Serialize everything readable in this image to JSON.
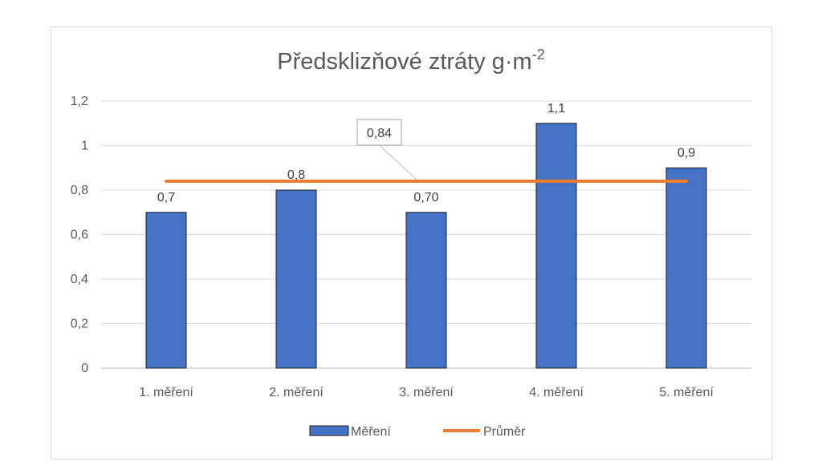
{
  "chart_data": {
    "type": "bar",
    "title": "Předsklizňové ztráty g·m",
    "title_superscript": "-2",
    "categories": [
      "1. měření",
      "2. měření",
      "3. měření",
      "4. měření",
      "5. měření"
    ],
    "series": [
      {
        "name": "Měření",
        "kind": "bar",
        "color": "#4472c4",
        "values": [
          0.7,
          0.8,
          0.7,
          1.1,
          0.9
        ],
        "data_labels": [
          "0,7",
          "0,8",
          "0,70",
          "1,1",
          "0,9"
        ]
      },
      {
        "name": "Průměr",
        "kind": "line",
        "color": "#ed7d31",
        "values": [
          0.84,
          0.84,
          0.84,
          0.84,
          0.84
        ],
        "callout_label": "0,84"
      }
    ],
    "yticks": [
      0,
      0.2,
      0.4,
      0.6,
      0.8,
      1,
      1.2
    ],
    "ytick_labels": [
      "0",
      "0,2",
      "0,4",
      "0,6",
      "0,8",
      "1",
      "1,2"
    ],
    "ylim": [
      0,
      1.2
    ],
    "grid": true,
    "legend_position": "bottom"
  }
}
